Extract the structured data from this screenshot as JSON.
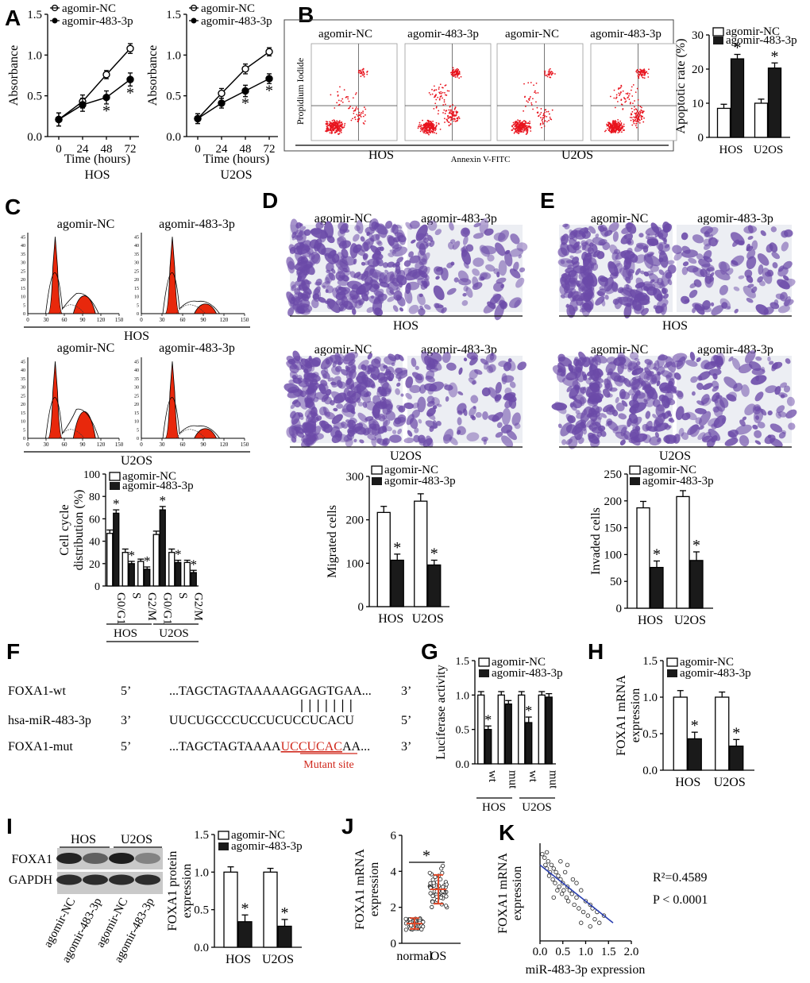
{
  "panel_letters": [
    "A",
    "B",
    "C",
    "D",
    "E",
    "F",
    "G",
    "H",
    "I",
    "J",
    "K"
  ],
  "legend": {
    "nc": "agomir-NC",
    "ago": "agomir-483-3p"
  },
  "colors": {
    "bar_dark": "#1a1a1a",
    "flow_dots": "#e8141e",
    "histo_fill": "#e8280c",
    "stain": "#6b4aa8",
    "mutant": "#d0281c",
    "fit_line": "#2a3fb0"
  },
  "panel_A": {
    "ylabel": "Absorbance",
    "xlabel": "Time (hours)",
    "cells": [
      "HOS",
      "U2OS"
    ],
    "chart_data": [
      {
        "type": "line",
        "x": [
          0,
          24,
          48,
          72
        ],
        "ylim": [
          0,
          1.5
        ],
        "yticks": [
          0.0,
          0.5,
          1.0,
          1.5
        ],
        "series": [
          {
            "name": "agomir-NC",
            "values": [
              0.21,
              0.43,
              0.76,
              1.08
            ],
            "err": [
              0.08,
              0.08,
              0.05,
              0.06
            ]
          },
          {
            "name": "agomir-483-3p",
            "values": [
              0.21,
              0.39,
              0.48,
              0.7
            ],
            "err": [
              0.08,
              0.08,
              0.08,
              0.08
            ]
          }
        ],
        "sig": [
          false,
          false,
          true,
          true
        ]
      },
      {
        "type": "line",
        "x": [
          0,
          24,
          48,
          72
        ],
        "ylim": [
          0,
          1.5
        ],
        "yticks": [
          0.0,
          0.5,
          1.0,
          1.5
        ],
        "series": [
          {
            "name": "agomir-NC",
            "values": [
              0.22,
              0.53,
              0.83,
              1.04
            ],
            "err": [
              0.06,
              0.06,
              0.06,
              0.05
            ]
          },
          {
            "name": "agomir-483-3p",
            "values": [
              0.22,
              0.41,
              0.56,
              0.71
            ],
            "err": [
              0.06,
              0.06,
              0.07,
              0.06
            ]
          }
        ],
        "sig": [
          false,
          false,
          true,
          true
        ]
      }
    ]
  },
  "panel_B": {
    "headers": [
      "agomir-NC",
      "agomir-483-3p",
      "agomir-NC",
      "agomir-483-3p"
    ],
    "yaxis": "Propidium Iodide",
    "xaxis": "Annexin V-FITC",
    "cells": [
      "HOS",
      "U2OS"
    ],
    "chart_data": {
      "type": "bar",
      "categories": [
        "HOS",
        "U2OS"
      ],
      "ylabel": "Apoptotic rate (%)",
      "ylim": [
        0,
        30
      ],
      "yticks": [
        0,
        10,
        20,
        30
      ],
      "series": [
        {
          "name": "agomir-NC",
          "values": [
            8.5,
            10
          ],
          "err": [
            1.2,
            1.2
          ]
        },
        {
          "name": "agomir-483-3p",
          "values": [
            23,
            20.3
          ],
          "err": [
            1.3,
            1.5
          ]
        }
      ],
      "sig": [
        true,
        true
      ]
    }
  },
  "panel_C": {
    "headers": [
      "agomir-NC",
      "agomir-483-3p"
    ],
    "cells": [
      "HOS",
      "U2OS"
    ],
    "histo_ticks": [
      "0",
      "30",
      "60",
      "90",
      "120",
      "150"
    ],
    "histo_yticks": [
      "0",
      "5",
      "10",
      "15",
      "20",
      "25",
      "30",
      "35",
      "40",
      "45"
    ],
    "chart_data": {
      "type": "bar",
      "categories": [
        "G0/G1",
        "S",
        "G2/M",
        "G0/G1",
        "S",
        "G2/M"
      ],
      "groups": [
        "HOS",
        "U2OS"
      ],
      "ylabel": "Cell cycle distribution (%)",
      "ylim": [
        0,
        100
      ],
      "yticks": [
        0,
        20,
        40,
        60,
        80,
        100
      ],
      "series": [
        {
          "name": "agomir-NC",
          "values": [
            47,
            30,
            22,
            46,
            30,
            21
          ],
          "err": [
            3,
            3,
            2,
            3,
            3,
            2
          ]
        },
        {
          "name": "agomir-483-3p",
          "values": [
            65,
            20,
            15,
            68,
            21,
            12
          ],
          "err": [
            3,
            2,
            2,
            3,
            2,
            2
          ]
        }
      ],
      "sig": [
        true,
        true,
        true,
        true,
        true,
        true
      ]
    }
  },
  "panel_D": {
    "headers": [
      "agomir-NC",
      "agomir-483-3p"
    ],
    "cells": [
      "HOS",
      "U2OS"
    ],
    "chart_data": {
      "type": "bar",
      "categories": [
        "HOS",
        "U2OS"
      ],
      "ylabel": "Migrated cells",
      "ylim": [
        0,
        300
      ],
      "yticks": [
        0,
        100,
        200,
        300
      ],
      "series": [
        {
          "name": "agomir-NC",
          "values": [
            217,
            243
          ],
          "err": [
            14,
            17
          ]
        },
        {
          "name": "agomir-483-3p",
          "values": [
            107,
            96
          ],
          "err": [
            14,
            11
          ]
        }
      ],
      "sig": [
        true,
        true
      ]
    }
  },
  "panel_E": {
    "headers": [
      "agomir-NC",
      "agomir-483-3p"
    ],
    "cells": [
      "HOS",
      "U2OS"
    ],
    "chart_data": {
      "type": "bar",
      "categories": [
        "HOS",
        "U2OS"
      ],
      "ylabel": "Invaded cells",
      "ylim": [
        0,
        250
      ],
      "yticks": [
        0,
        50,
        100,
        150,
        200,
        250
      ],
      "series": [
        {
          "name": "agomir-NC",
          "values": [
            187,
            208
          ],
          "err": [
            12,
            11
          ]
        },
        {
          "name": "agomir-483-3p",
          "values": [
            76,
            89
          ],
          "err": [
            12,
            16
          ]
        }
      ],
      "sig": [
        true,
        true
      ]
    }
  },
  "panel_F": {
    "rows": [
      {
        "name": "FOXA1-wt",
        "end5": "5’",
        "seq": "...TAGCTAGTAAAAAGGAGTGAA...",
        "end3": "3’"
      },
      {
        "name": "hsa-miR-483-3p",
        "end5": "3’",
        "seq": "UUCUGCCCUCCUCUCCUCACU",
        "end3": "5’"
      },
      {
        "name": "FOXA1-mut",
        "end5": "5’",
        "seq_pre": "...TAGCTAGTAAAA",
        "seq_mut": "UCCUCAC",
        "seq_post": "AA...",
        "end3": "3’"
      }
    ],
    "mutant_label": "Mutant site"
  },
  "panel_G": {
    "chart_data": {
      "type": "bar",
      "categories": [
        "wt",
        "mut",
        "wt",
        "mut"
      ],
      "groups": [
        "HOS",
        "U2OS"
      ],
      "ylabel": "Luciferase activity",
      "ylim": [
        0,
        1.5
      ],
      "yticks": [
        0.0,
        0.5,
        1.0,
        1.5
      ],
      "series": [
        {
          "name": "agomir-NC",
          "values": [
            1.0,
            1.0,
            1.0,
            1.0
          ],
          "err": [
            0.05,
            0.05,
            0.05,
            0.05
          ]
        },
        {
          "name": "agomir-483-3p",
          "values": [
            0.5,
            0.87,
            0.6,
            0.97
          ],
          "err": [
            0.05,
            0.05,
            0.08,
            0.05
          ]
        }
      ],
      "sig": [
        true,
        false,
        true,
        false
      ]
    }
  },
  "panel_H": {
    "chart_data": {
      "type": "bar",
      "categories": [
        "HOS",
        "U2OS"
      ],
      "ylabel": "FOXA1 mRNA expression",
      "ylim": [
        0,
        1.5
      ],
      "yticks": [
        0.0,
        0.5,
        1.0,
        1.5
      ],
      "series": [
        {
          "name": "agomir-NC",
          "values": [
            1.0,
            1.0
          ],
          "err": [
            0.09,
            0.07
          ]
        },
        {
          "name": "agomir-483-3p",
          "values": [
            0.43,
            0.33
          ],
          "err": [
            0.09,
            0.09
          ]
        }
      ],
      "sig": [
        true,
        true
      ]
    }
  },
  "panel_I": {
    "blot_groups": [
      "HOS",
      "U2OS"
    ],
    "blot_rows": [
      "FOXA1",
      "GAPDH"
    ],
    "lanes": [
      "agomir-NC",
      "agomir-483-3p",
      "agomir-NC",
      "agomir-483-3p"
    ],
    "chart_data": {
      "type": "bar",
      "categories": [
        "HOS",
        "U2OS"
      ],
      "ylabel": "FOXA1 protein expression",
      "ylim": [
        0,
        1.5
      ],
      "yticks": [
        0.0,
        0.5,
        1.0,
        1.5
      ],
      "series": [
        {
          "name": "agomir-NC",
          "values": [
            1.0,
            1.0
          ],
          "err": [
            0.07,
            0.05
          ]
        },
        {
          "name": "agomir-483-3p",
          "values": [
            0.34,
            0.28
          ],
          "err": [
            0.09,
            0.09
          ]
        }
      ],
      "sig": [
        true,
        true
      ]
    }
  },
  "panel_J": {
    "chart_data": {
      "type": "scatter",
      "categories": [
        "normal",
        "OS"
      ],
      "ylabel": "FOXA1 mRNA expression",
      "ylim": [
        0,
        6
      ],
      "yticks": [
        0,
        2,
        4,
        6
      ],
      "means": [
        1.1,
        3.0
      ],
      "sd": [
        0.3,
        0.8
      ],
      "sig": true
    }
  },
  "panel_K": {
    "r2": "R²=0.4589",
    "p": "P < 0.0001",
    "chart_data": {
      "type": "scatter",
      "ylabel": "FOXA1 mRNA expression",
      "xlabel": "miR-483-3p expression",
      "xlim": [
        0,
        2
      ],
      "xticks": [
        "0.0",
        "0.5",
        "1.0",
        "1.5",
        "2.0"
      ],
      "fit": {
        "x": [
          0.0,
          1.6
        ],
        "y": [
          3.6,
          2.0
        ]
      },
      "points": [
        [
          0.05,
          3.9
        ],
        [
          0.1,
          3.8
        ],
        [
          0.12,
          3.6
        ],
        [
          0.15,
          3.5
        ],
        [
          0.18,
          3.7
        ],
        [
          0.2,
          3.3
        ],
        [
          0.22,
          3.4
        ],
        [
          0.25,
          3.6
        ],
        [
          0.28,
          3.2
        ],
        [
          0.3,
          3.5
        ],
        [
          0.33,
          3.1
        ],
        [
          0.35,
          3.4
        ],
        [
          0.38,
          2.9
        ],
        [
          0.4,
          3.3
        ],
        [
          0.42,
          3.0
        ],
        [
          0.45,
          3.2
        ],
        [
          0.48,
          2.8
        ],
        [
          0.5,
          3.1
        ],
        [
          0.52,
          2.9
        ],
        [
          0.55,
          3.4
        ],
        [
          0.58,
          2.7
        ],
        [
          0.6,
          3.0
        ],
        [
          0.62,
          2.6
        ],
        [
          0.65,
          2.9
        ],
        [
          0.7,
          2.8
        ],
        [
          0.72,
          3.2
        ],
        [
          0.75,
          2.5
        ],
        [
          0.8,
          2.7
        ],
        [
          0.85,
          2.4
        ],
        [
          0.9,
          2.9
        ],
        [
          0.95,
          2.3
        ],
        [
          1.0,
          2.6
        ],
        [
          1.05,
          2.2
        ],
        [
          1.1,
          2.5
        ],
        [
          1.15,
          2.4
        ],
        [
          1.2,
          2.1
        ],
        [
          1.25,
          2.3
        ],
        [
          1.3,
          2.0
        ],
        [
          1.4,
          2.2
        ],
        [
          0.3,
          2.7
        ],
        [
          0.6,
          3.6
        ],
        [
          0.15,
          3.95
        ],
        [
          0.45,
          3.7
        ],
        [
          0.9,
          2.0
        ],
        [
          1.1,
          1.9
        ],
        [
          0.8,
          3.1
        ]
      ]
    }
  }
}
